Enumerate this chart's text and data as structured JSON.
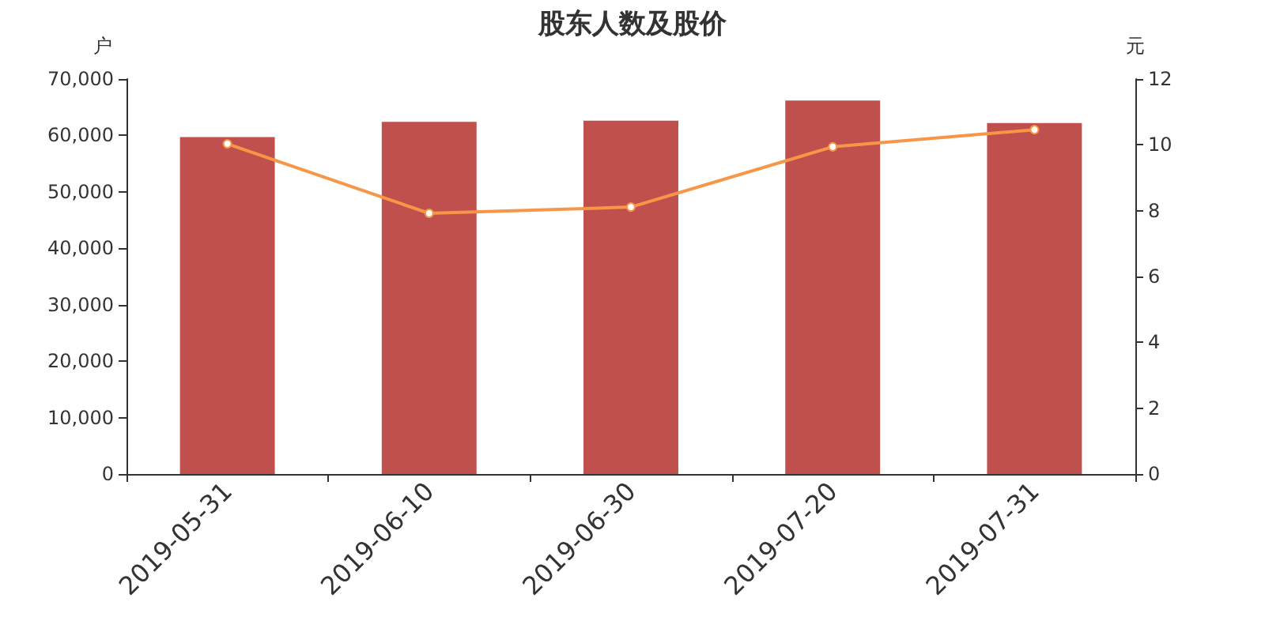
{
  "chart_data": {
    "type": "bar",
    "title": "股东人数及股价",
    "ylabel": "户",
    "y2label": "元",
    "categories": [
      "2019-05-31",
      "2019-06-10",
      "2019-06-30",
      "2019-07-20",
      "2019-07-31"
    ],
    "series": [
      {
        "color": "#c0504d",
        "values": [
          59700,
          62400,
          62600,
          66200,
          62200
        ]
      },
      {
        "type": "line",
        "axis": "y2",
        "color": "#f79646",
        "marker": "circle",
        "values": [
          10.03,
          7.92,
          8.11,
          9.94,
          10.46
        ]
      }
    ],
    "ylim": [
      0,
      70000
    ],
    "yticks": [
      0,
      {
        "value": 10000,
        "label": "10,000"
      },
      {
        "value": 20000,
        "label": "20,000"
      },
      {
        "value": 30000,
        "label": "30,000"
      },
      {
        "value": 40000,
        "label": "40,000"
      },
      {
        "value": 50000,
        "label": "50,000"
      },
      {
        "value": 60000,
        "label": "60,000"
      },
      {
        "value": 70000,
        "label": "70,000"
      }
    ],
    "y2lim": [
      0,
      12
    ],
    "y2ticks": [
      0,
      2,
      4,
      6,
      8,
      10,
      12
    ],
    "grid": false
  }
}
